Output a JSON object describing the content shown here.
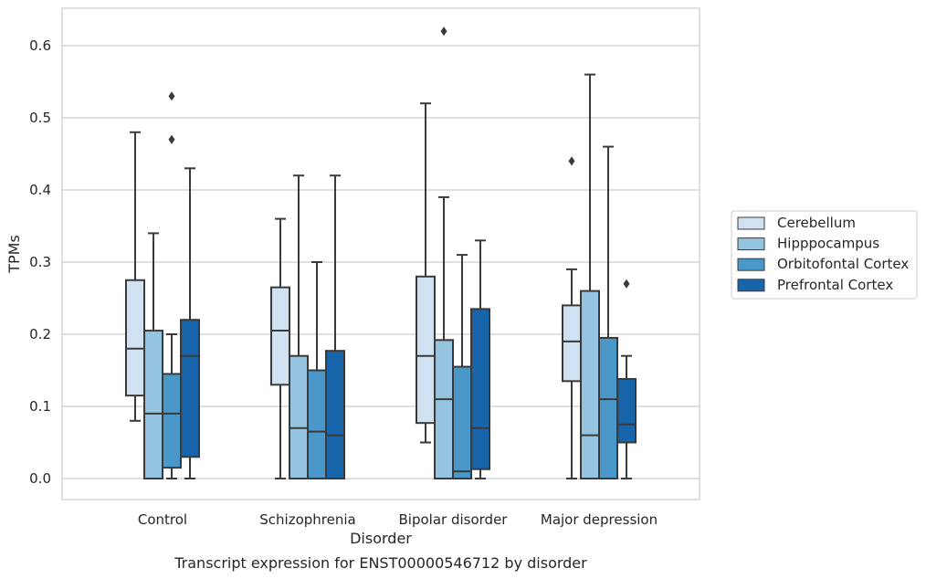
{
  "chart_data": {
    "type": "box",
    "caption": "Transcript expression for ENST00000546712 by disorder",
    "xlabel": "Disorder",
    "ylabel": "TPMs",
    "ylim": [
      -0.03,
      0.65
    ],
    "yticks": [
      "0.0",
      "0.1",
      "0.2",
      "0.3",
      "0.4",
      "0.5",
      "0.6"
    ],
    "grid": "horizontal",
    "legend_position": "right",
    "categories": [
      "Control",
      "Schizophrenia",
      "Bipolar disorder",
      "Major depression"
    ],
    "series": [
      {
        "name": "Cerebellum",
        "color": "#d0e1f2",
        "boxes": [
          {
            "whisker_low": 0.08,
            "q1": 0.115,
            "median": 0.18,
            "q3": 0.275,
            "whisker_high": 0.48,
            "outliers": []
          },
          {
            "whisker_low": 0.0,
            "q1": 0.13,
            "median": 0.205,
            "q3": 0.265,
            "whisker_high": 0.36,
            "outliers": []
          },
          {
            "whisker_low": 0.05,
            "q1": 0.077,
            "median": 0.17,
            "q3": 0.28,
            "whisker_high": 0.52,
            "outliers": []
          },
          {
            "whisker_low": 0.0,
            "q1": 0.135,
            "median": 0.19,
            "q3": 0.24,
            "whisker_high": 0.29,
            "outliers": [
              0.44
            ]
          }
        ]
      },
      {
        "name": "Hipppocampus",
        "color": "#94c4df",
        "boxes": [
          {
            "whisker_low": 0.0,
            "q1": 0.0,
            "median": 0.09,
            "q3": 0.205,
            "whisker_high": 0.34,
            "outliers": []
          },
          {
            "whisker_low": 0.0,
            "q1": 0.0,
            "median": 0.07,
            "q3": 0.17,
            "whisker_high": 0.42,
            "outliers": []
          },
          {
            "whisker_low": 0.0,
            "q1": 0.0,
            "median": 0.11,
            "q3": 0.192,
            "whisker_high": 0.39,
            "outliers": [
              0.62
            ]
          },
          {
            "whisker_low": 0.0,
            "q1": 0.0,
            "median": 0.06,
            "q3": 0.26,
            "whisker_high": 0.56,
            "outliers": []
          }
        ]
      },
      {
        "name": "Orbitofontal Cortex",
        "color": "#4a98c9",
        "boxes": [
          {
            "whisker_low": 0.0,
            "q1": 0.015,
            "median": 0.09,
            "q3": 0.145,
            "whisker_high": 0.2,
            "outliers": [
              0.53,
              0.47
            ]
          },
          {
            "whisker_low": 0.0,
            "q1": 0.0,
            "median": 0.065,
            "q3": 0.15,
            "whisker_high": 0.3,
            "outliers": []
          },
          {
            "whisker_low": 0.0,
            "q1": 0.0,
            "median": 0.01,
            "q3": 0.155,
            "whisker_high": 0.31,
            "outliers": []
          },
          {
            "whisker_low": 0.0,
            "q1": 0.0,
            "median": 0.11,
            "q3": 0.195,
            "whisker_high": 0.46,
            "outliers": []
          }
        ]
      },
      {
        "name": "Prefrontal Cortex",
        "color": "#1764ab",
        "boxes": [
          {
            "whisker_low": 0.0,
            "q1": 0.03,
            "median": 0.17,
            "q3": 0.22,
            "whisker_high": 0.43,
            "outliers": []
          },
          {
            "whisker_low": 0.0,
            "q1": 0.0,
            "median": 0.06,
            "q3": 0.177,
            "whisker_high": 0.42,
            "outliers": []
          },
          {
            "whisker_low": 0.0,
            "q1": 0.013,
            "median": 0.07,
            "q3": 0.235,
            "whisker_high": 0.33,
            "outliers": []
          },
          {
            "whisker_low": 0.0,
            "q1": 0.05,
            "median": 0.075,
            "q3": 0.138,
            "whisker_high": 0.17,
            "outliers": [
              0.27
            ]
          }
        ]
      }
    ]
  }
}
